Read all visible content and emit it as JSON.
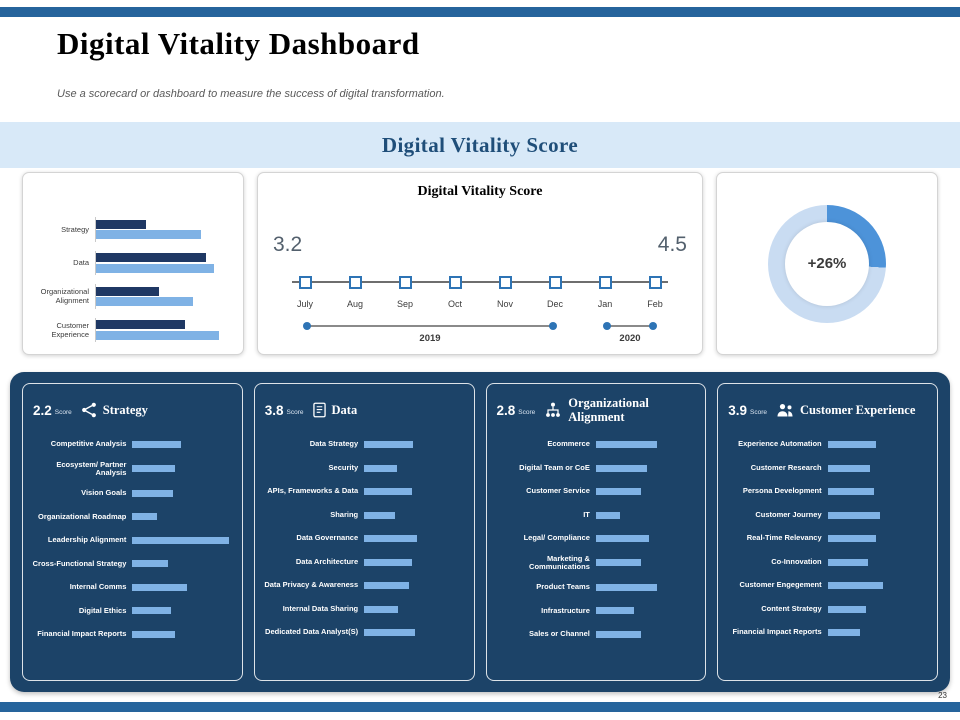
{
  "page": {
    "title": "Digital Vitality Dashboard",
    "subtitle": "Use a scorecard or dashboard to measure the success of digital transformation.",
    "page_number": "23"
  },
  "banner": {
    "title": "Digital Vitality Score"
  },
  "colors": {
    "accent_bar": "#26649C",
    "panel_bg": "#1C4368",
    "bar_dark": "#1F3864",
    "bar_light": "#7FB2E5",
    "banner_bg": "#D8E9F8",
    "banner_text": "#1F4E79",
    "marker_border": "#2E74B5"
  },
  "chart_data": [
    {
      "id": "category-comparison",
      "type": "bar",
      "orientation": "horizontal",
      "categories": [
        "Strategy",
        "Data",
        "Organizational Alignment",
        "Customer Experience"
      ],
      "series": [
        {
          "name": "series-1-dark",
          "color": "#1F3864",
          "values": [
            1.9,
            4.2,
            2.4,
            3.4
          ]
        },
        {
          "name": "series-2-light",
          "color": "#7FB2E5",
          "values": [
            4.0,
            4.5,
            3.7,
            4.7
          ]
        }
      ],
      "xlim": [
        0,
        5
      ],
      "legend": "none",
      "grid": false
    },
    {
      "id": "vitality-trend",
      "type": "line",
      "title": "Digital Vitality Score",
      "x": [
        "July",
        "Aug",
        "Sep",
        "Oct",
        "Nov",
        "Dec",
        "Jan",
        "Feb"
      ],
      "start_label": "3.2",
      "end_label": "4.5",
      "start_value": 3.2,
      "end_value": 4.5,
      "marker": "square",
      "year_groups": [
        {
          "label": "2019",
          "from": "July",
          "to": "Dec"
        },
        {
          "label": "2020",
          "from": "Jan",
          "to": "Feb"
        }
      ]
    },
    {
      "id": "improvement-donut",
      "type": "pie",
      "label": "+26%",
      "value_pct": 26,
      "arc_color": "#4D93D9",
      "ring_color": "#C9DCF2"
    }
  ],
  "panels": [
    {
      "score": "2.2",
      "score_label": "Score",
      "title": "Strategy",
      "icon": "strategy-icon",
      "items": [
        {
          "label": "Competitive Analysis",
          "value_pct": 48
        },
        {
          "label": "Ecosystem/ Partner Analysis",
          "value_pct": 42
        },
        {
          "label": "Vision Goals",
          "value_pct": 40
        },
        {
          "label": "Organizational Roadmap",
          "value_pct": 24
        },
        {
          "label": "Leadership Alignment",
          "value_pct": 95
        },
        {
          "label": "Cross-Functional Strategy",
          "value_pct": 35
        },
        {
          "label": "Internal Comms",
          "value_pct": 54
        },
        {
          "label": "Digital Ethics",
          "value_pct": 38
        },
        {
          "label": "Financial Impact Reports",
          "value_pct": 42
        }
      ]
    },
    {
      "score": "3.8",
      "score_label": "Score",
      "title": "Data",
      "icon": "data-icon",
      "items": [
        {
          "label": "Data Strategy",
          "value_pct": 48
        },
        {
          "label": "Security",
          "value_pct": 32
        },
        {
          "label": "APIs, Frameworks & Data",
          "value_pct": 47
        },
        {
          "label": "Sharing",
          "value_pct": 30
        },
        {
          "label": "Data Governance",
          "value_pct": 52
        },
        {
          "label": "Data Architecture",
          "value_pct": 47
        },
        {
          "label": "Data Privacy & Awareness",
          "value_pct": 44
        },
        {
          "label": "Internal Data Sharing",
          "value_pct": 33
        },
        {
          "label": "Dedicated Data Analyst(S)",
          "value_pct": 50
        }
      ]
    },
    {
      "score": "2.8",
      "score_label": "Score",
      "title": "Organizational Alignment",
      "icon": "org-alignment-icon",
      "items": [
        {
          "label": "Ecommerce",
          "value_pct": 60
        },
        {
          "label": "Digital Team or CoE",
          "value_pct": 50
        },
        {
          "label": "Customer Service",
          "value_pct": 45
        },
        {
          "label": "IT",
          "value_pct": 24
        },
        {
          "label": "Legal/ Compliance",
          "value_pct": 52
        },
        {
          "label": "Marketing & Communications",
          "value_pct": 45
        },
        {
          "label": "Product Teams",
          "value_pct": 60
        },
        {
          "label": "Infrastructure",
          "value_pct": 38
        },
        {
          "label": "Sales or Channel",
          "value_pct": 45
        }
      ]
    },
    {
      "score": "3.9",
      "score_label": "Score",
      "title": "Customer Experience",
      "icon": "customer-experience-icon",
      "items": [
        {
          "label": "Experience Automation",
          "value_pct": 48
        },
        {
          "label": "Customer Research",
          "value_pct": 42
        },
        {
          "label": "Persona Development",
          "value_pct": 46
        },
        {
          "label": "Customer Journey",
          "value_pct": 52
        },
        {
          "label": "Real-Time Relevancy",
          "value_pct": 48
        },
        {
          "label": "Co-Innovation",
          "value_pct": 40
        },
        {
          "label": "Customer Engegement",
          "value_pct": 55
        },
        {
          "label": "Content Strategy",
          "value_pct": 38
        },
        {
          "label": "Financial Impact Reports",
          "value_pct": 32
        }
      ]
    }
  ]
}
